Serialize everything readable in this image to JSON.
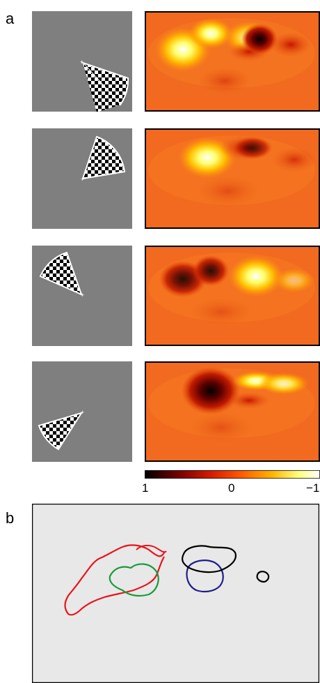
{
  "panel_labels": {
    "a": "a",
    "b": "b"
  },
  "colorbar": {
    "ticks": [
      "1",
      "0",
      "−1"
    ],
    "colors": [
      "#000000",
      "#7a0000",
      "#d61c00",
      "#ff5a00",
      "#ffb000",
      "#ffff80",
      "#ffffff"
    ]
  },
  "colors": {
    "stimulus_background": "#7f7f7f",
    "map_background": "#f26a1f",
    "panel_b_background": "#e8e8e8",
    "contour_red": "#e8141c",
    "contour_green": "#1a9a3a",
    "contour_navy": "#1e1e8c",
    "contour_black": "#000000"
  },
  "rows": [
    {
      "stimulus": "wedge-lower-right",
      "hotspot": "upper-left",
      "darkspot": "upper-center-right"
    },
    {
      "stimulus": "wedge-upper-right",
      "hotspot": "upper-center-left",
      "darkspot": "upper-center-right"
    },
    {
      "stimulus": "wedge-upper-left",
      "hotspot": "upper-right",
      "darkspot": "upper-left"
    },
    {
      "stimulus": "wedge-lower-left",
      "hotspot": "upper-right",
      "darkspot": "upper-center"
    }
  ],
  "contours": [
    "red",
    "green",
    "navy",
    "black",
    "black-small"
  ]
}
